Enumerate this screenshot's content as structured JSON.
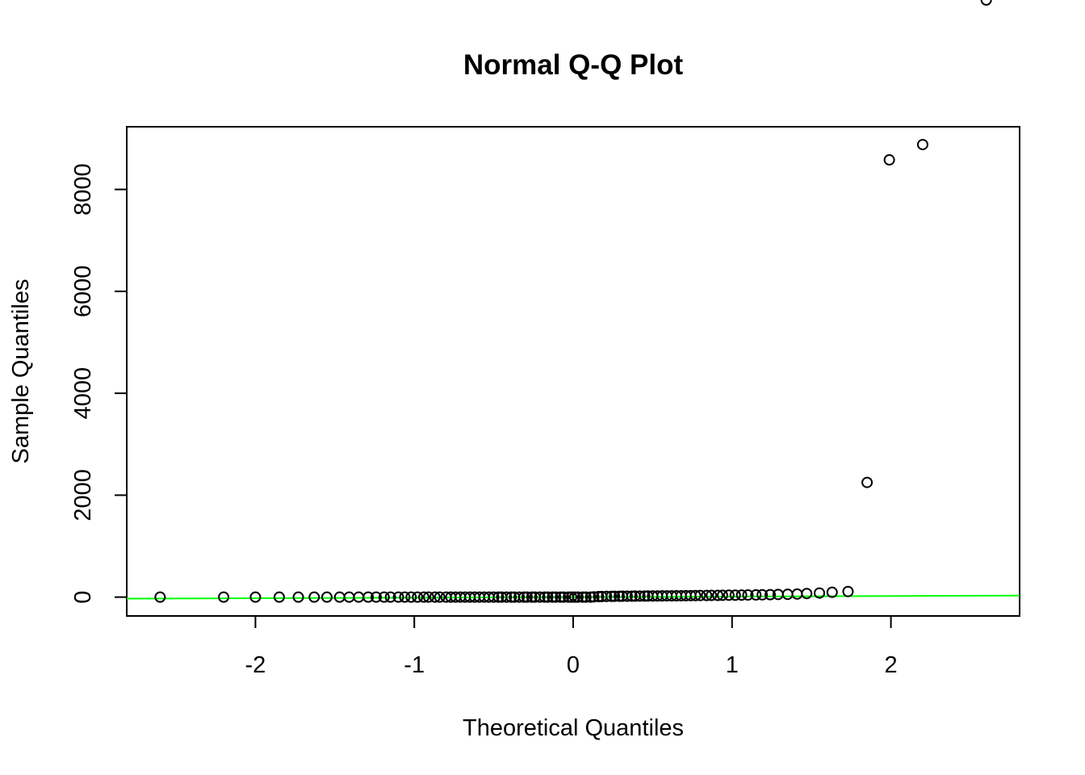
{
  "chart_data": {
    "type": "scatter",
    "title": "Normal Q-Q Plot",
    "xlabel": "Theoretical Quantiles",
    "ylabel": "Sample Quantiles",
    "xlim": [
      -2.81,
      2.81
    ],
    "ylim": [
      -370,
      9230
    ],
    "x_ticks": [
      -2,
      -1,
      0,
      1,
      2
    ],
    "y_ticks": [
      0,
      2000,
      4000,
      6000,
      8000
    ],
    "grid": false,
    "legend": "none",
    "reference_line": {
      "from": [
        -2.81,
        -30
      ],
      "to": [
        2.81,
        30
      ],
      "color": "#00ff00"
    },
    "points_x": [
      -2.6,
      -2.2,
      -2.0,
      -1.85,
      -1.73,
      -1.63,
      -1.55,
      -1.47,
      -1.41,
      -1.35,
      -1.29,
      -1.24,
      -1.19,
      -1.15,
      -1.1,
      -1.06,
      -1.02,
      -0.98,
      -0.94,
      -0.91,
      -0.87,
      -0.84,
      -0.8,
      -0.77,
      -0.74,
      -0.71,
      -0.68,
      -0.65,
      -0.62,
      -0.59,
      -0.56,
      -0.53,
      -0.5,
      -0.47,
      -0.45,
      -0.42,
      -0.39,
      -0.37,
      -0.34,
      -0.31,
      -0.29,
      -0.26,
      -0.24,
      -0.21,
      -0.18,
      -0.16,
      -0.13,
      -0.11,
      -0.08,
      -0.06,
      -0.03,
      -0.01,
      0.01,
      0.03,
      0.06,
      0.08,
      0.11,
      0.13,
      0.16,
      0.18,
      0.21,
      0.24,
      0.26,
      0.29,
      0.31,
      0.34,
      0.37,
      0.39,
      0.42,
      0.45,
      0.47,
      0.5,
      0.53,
      0.56,
      0.59,
      0.62,
      0.65,
      0.68,
      0.71,
      0.74,
      0.77,
      0.8,
      0.84,
      0.87,
      0.91,
      0.94,
      0.98,
      1.02,
      1.06,
      1.1,
      1.15,
      1.19,
      1.24,
      1.29,
      1.35,
      1.41,
      1.47,
      1.55,
      1.63,
      1.73,
      1.85,
      1.99,
      2.2,
      2.6
    ],
    "points_y": [
      0,
      0,
      0,
      0,
      0,
      0,
      0,
      0,
      0,
      0,
      0,
      0,
      0,
      0,
      0,
      0,
      0,
      0,
      0,
      0,
      0,
      0,
      0,
      0,
      0,
      0,
      0,
      0,
      0,
      0,
      0,
      0,
      0,
      0,
      0,
      0,
      0,
      0,
      0,
      0,
      0,
      0,
      0,
      0,
      0,
      0,
      0,
      0,
      0,
      0,
      0,
      0,
      0,
      0,
      0,
      0,
      0,
      5,
      10,
      12,
      14,
      15,
      16,
      17,
      18,
      18,
      19,
      20,
      20,
      21,
      22,
      22,
      23,
      24,
      25,
      25,
      26,
      27,
      28,
      29,
      30,
      31,
      32,
      33,
      34,
      35,
      37,
      38,
      40,
      41,
      43,
      45,
      48,
      52,
      55,
      60,
      70,
      80,
      95,
      110,
      2250,
      8580,
      8880
    ]
  }
}
